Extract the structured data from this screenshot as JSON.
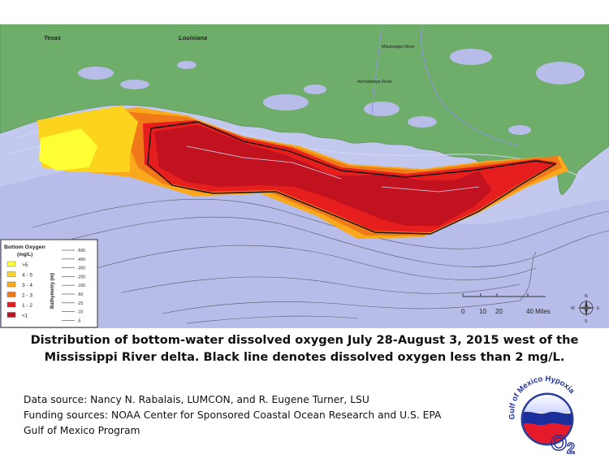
{
  "map": {
    "place_labels": {
      "texas": "Texas",
      "louisiana": "Louisiana",
      "mississippi_river": "Mississippi River",
      "atchafalaya_river": "Atchafalaya River"
    },
    "legend": {
      "title_line1": "Bottom Oxygen",
      "title_line2": "(mg/L)",
      "classes": [
        {
          "label": ">5",
          "color": "#ffff33"
        },
        {
          "label": "4 - 5",
          "color": "#fcd41e"
        },
        {
          "label": "3 - 4",
          "color": "#f9a91b"
        },
        {
          "label": "2 - 3",
          "color": "#f07a1a"
        },
        {
          "label": "1 - 2",
          "color": "#e61e1e"
        },
        {
          "label": "<1",
          "color": "#c2121f"
        }
      ],
      "bathymetry_title": "Bathymetry (m)",
      "depths": [
        "-500",
        "-400",
        "-300",
        "-200",
        "-100",
        "-50",
        "-25",
        "-10",
        "-5"
      ]
    },
    "scale_bar": {
      "ticks": [
        "0",
        "10",
        "20",
        "40 Miles"
      ]
    },
    "north_arrow": {
      "n": "N",
      "s": "S",
      "e": "E",
      "w": "W"
    },
    "colors": {
      "water": "#b7bde8",
      "land": "#6eae6a",
      "hypoxia_outline": "#111111"
    }
  },
  "caption": {
    "line1": "Distribution of bottom-water dissolved oxygen July 28-August 3, 2015 west of the",
    "line2": "Mississippi River delta. Black line denotes dissolved oxygen less than 2 mg/L."
  },
  "credits": {
    "data_source": "Data source: Nancy N. Rabalais, LUMCON, and R. Eugene Turner, LSU",
    "funding_line1": "Funding sources: NOAA Center for Sponsored Coastal Ocean Research  and U.S. EPA",
    "funding_line2": "Gulf of Mexico Program"
  },
  "logo": {
    "ring_text": "Gulf of Mexico Hypoxia",
    "mark": "O",
    "subscript": "2"
  }
}
